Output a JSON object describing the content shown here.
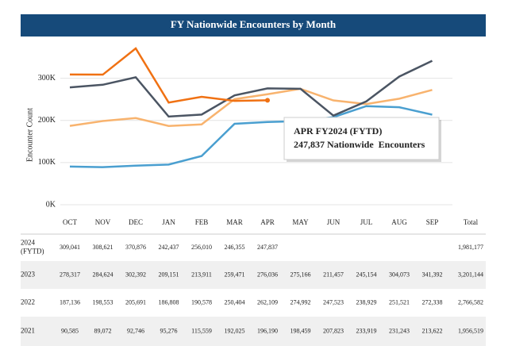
{
  "chart_data": {
    "type": "line",
    "title": "FY Nationwide Encounters by Month",
    "y_label": "Encounter Count",
    "categories": [
      "OCT",
      "NOV",
      "DEC",
      "JAN",
      "FEB",
      "MAR",
      "APR",
      "MAY",
      "JUN",
      "JUL",
      "AUG",
      "SEP"
    ],
    "total_header": "Total",
    "ylim": [
      0,
      384000
    ],
    "yticks": [
      {
        "value": 0,
        "label": "0K"
      },
      {
        "value": 100000,
        "label": "100K"
      },
      {
        "value": 200000,
        "label": "200K"
      },
      {
        "value": 300000,
        "label": "300K"
      }
    ],
    "grid": true,
    "series": [
      {
        "name": "2024 (FYTD)",
        "color": "#f07113",
        "values": [
          309041,
          308621,
          370876,
          242437,
          256010,
          246355,
          247837,
          null,
          null,
          null,
          null,
          null
        ],
        "value_labels": [
          "309,041",
          "308,621",
          "370,876",
          "242,437",
          "256,010",
          "246,355",
          "247,837",
          null,
          null,
          null,
          null,
          null
        ],
        "total_label": "1,981,177"
      },
      {
        "name": "2023",
        "color": "#4b5563",
        "values": [
          278317,
          284624,
          302392,
          209151,
          213911,
          259471,
          276036,
          275166,
          211457,
          245154,
          304073,
          341392
        ],
        "value_labels": [
          "278,317",
          "284,624",
          "302,392",
          "209,151",
          "213,911",
          "259,471",
          "276,036",
          "275,166",
          "211,457",
          "245,154",
          "304,073",
          "341,392"
        ],
        "total_label": "3,201,144"
      },
      {
        "name": "2022",
        "color": "#f8b36e",
        "values": [
          187136,
          198553,
          205691,
          186808,
          190578,
          250404,
          262109,
          274992,
          247523,
          238929,
          251521,
          272338
        ],
        "value_labels": [
          "187,136",
          "198,553",
          "205,691",
          "186,808",
          "190,578",
          "250,404",
          "262,109",
          "274,992",
          "247,523",
          "238,929",
          "251,521",
          "272,338"
        ],
        "total_label": "2,766,582"
      },
      {
        "name": "2021",
        "color": "#4a9fd0",
        "values": [
          90585,
          89072,
          92746,
          95276,
          115559,
          192025,
          196190,
          198459,
          207823,
          233919,
          231243,
          213622
        ],
        "value_labels": [
          "90,585",
          "89,072",
          "92,746",
          "95,276",
          "115,559",
          "192,025",
          "196,190",
          "198,459",
          "207,823",
          "233,919",
          "231,243",
          "213,622"
        ],
        "total_label": "1,956,519"
      }
    ],
    "annotation": {
      "title": "APR FY2024 (FYTD)",
      "text": "247,837 Nationwide  Encounters"
    }
  }
}
